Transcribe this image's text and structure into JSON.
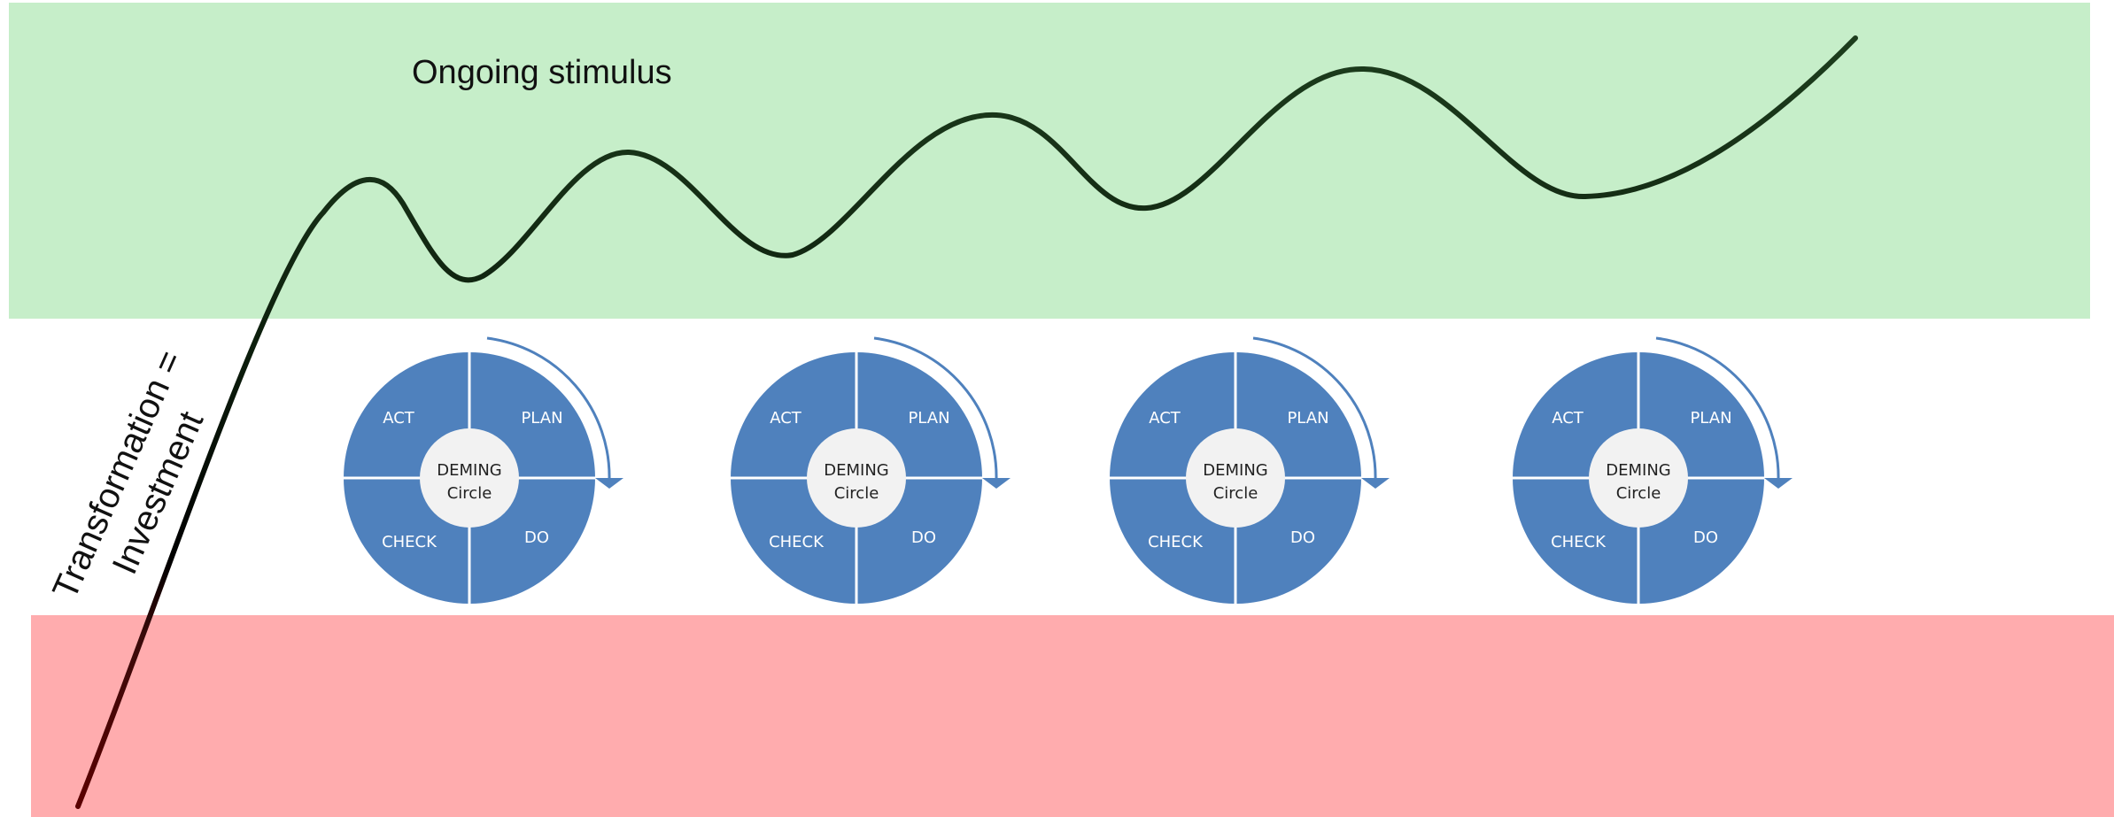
{
  "bands": {
    "top": {
      "color": "#c6eec9"
    },
    "bottom": {
      "color": "#ffacae"
    }
  },
  "stimulus_label": "Ongoing stimulus",
  "investment_label": {
    "line1": "Transformation =",
    "line2": "Investment"
  },
  "deming": {
    "fill": "#4f81bd",
    "core_fill": "#f2f2f2",
    "arrow_color": "#4f81bd",
    "quadrants": {
      "act": "ACT",
      "plan": "PLAN",
      "check": "CHECK",
      "do": "DO"
    },
    "core": {
      "line1": "DEMING",
      "line2": "Circle"
    },
    "count": 4
  },
  "curve": {
    "colors": {
      "rise": "#000000",
      "wave": "#1d3d1d",
      "low": "#5a0000"
    }
  }
}
